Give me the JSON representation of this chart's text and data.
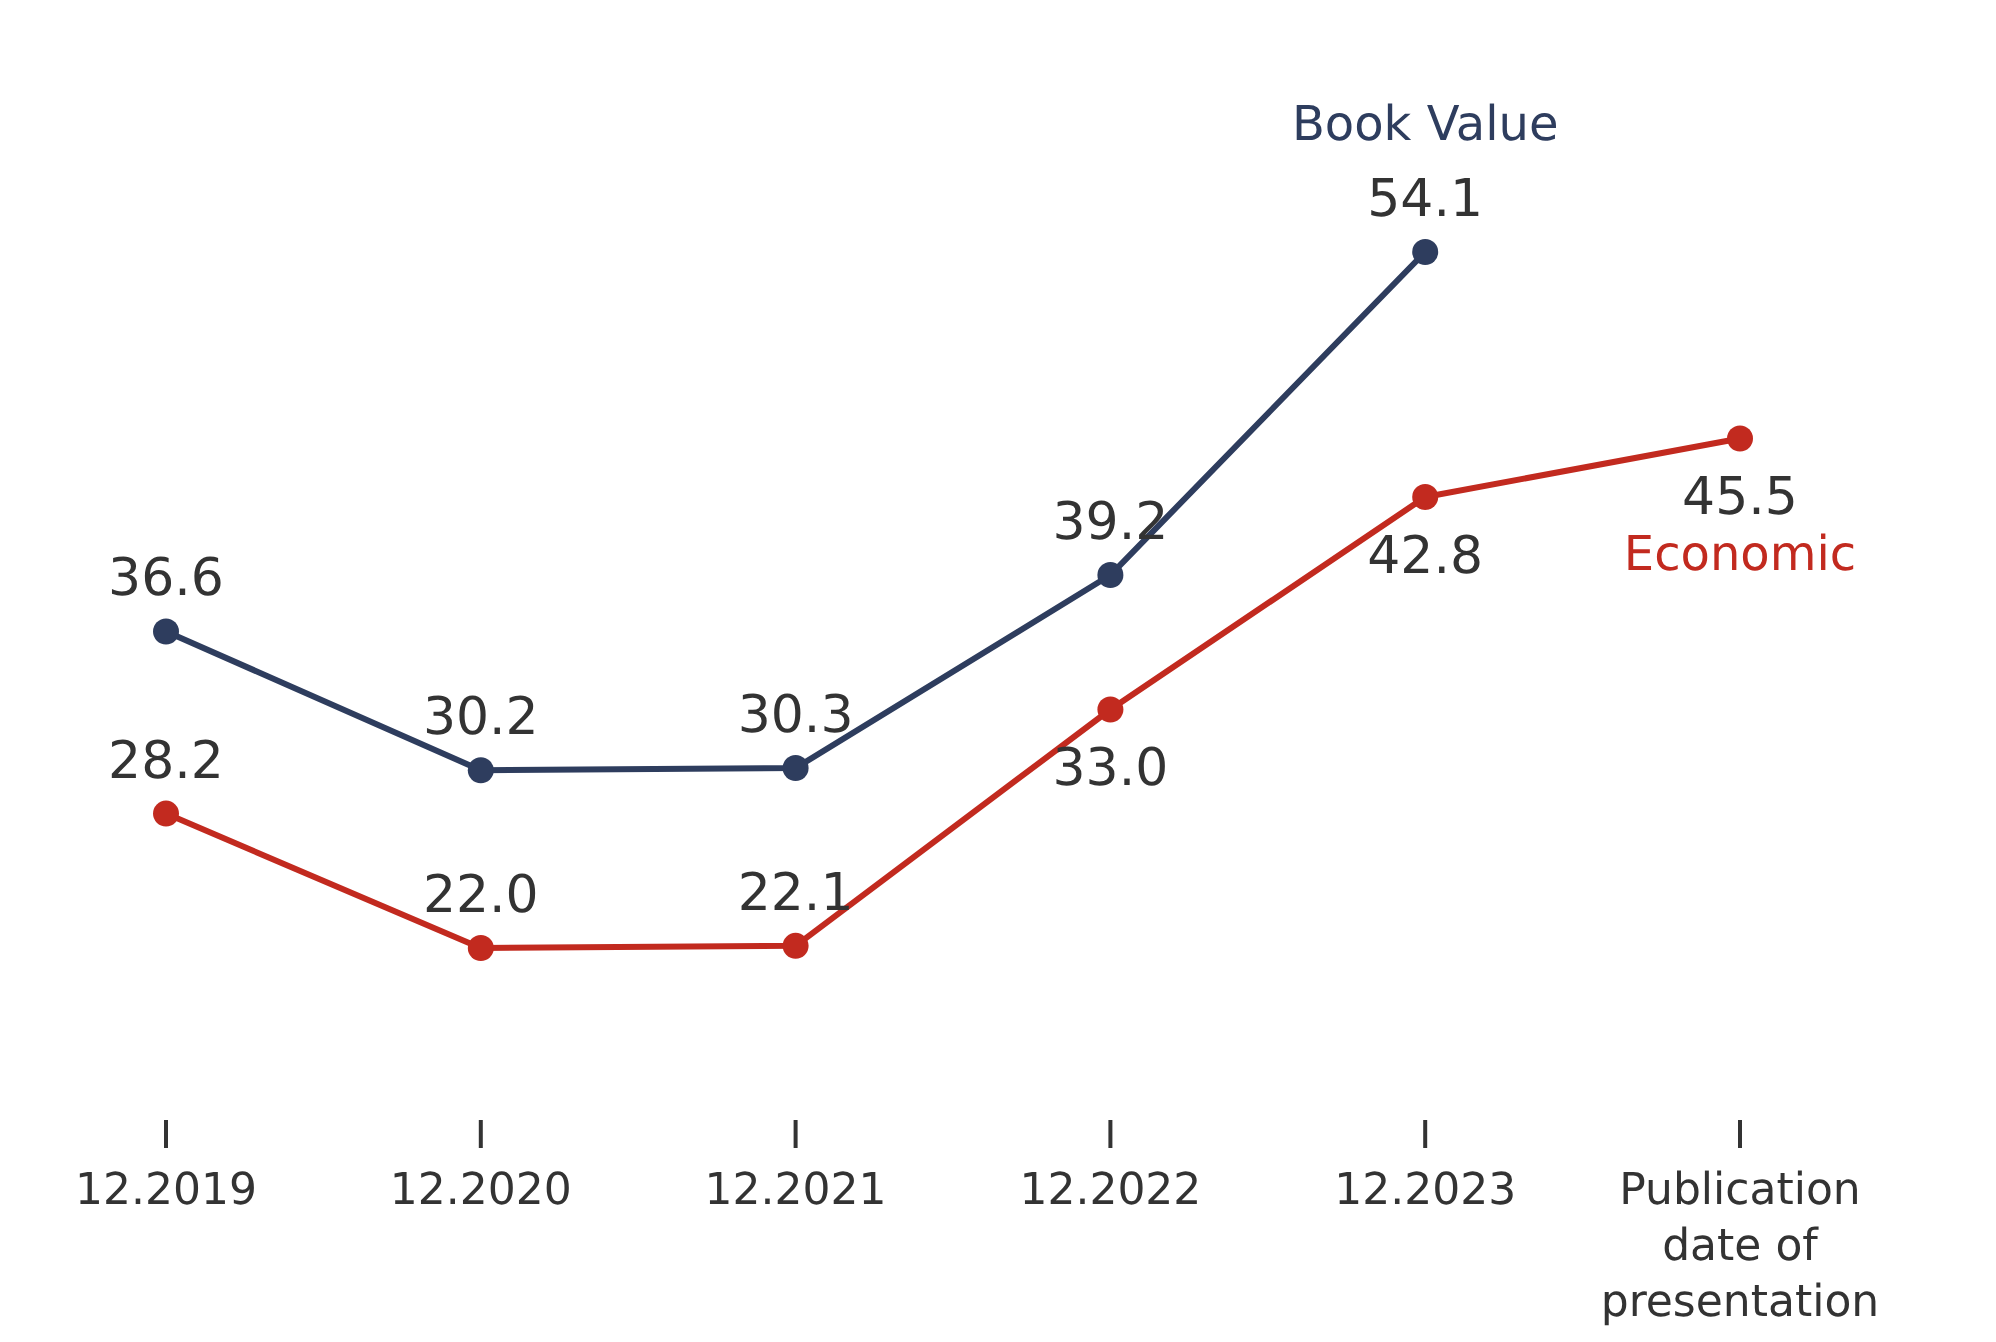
{
  "chart_data": {
    "type": "line",
    "categories": [
      "12.2019",
      "12.2020",
      "12.2021",
      "12.2022",
      "12.2023",
      "Publication date of presentation"
    ],
    "series": [
      {
        "name": "Book Value",
        "color": "#2e3d5e",
        "values": [
          36.6,
          30.2,
          30.3,
          39.2,
          54.1,
          null
        ],
        "value_labels": [
          "36.6",
          "30.2",
          "30.3",
          "39.2",
          "54.1",
          null
        ]
      },
      {
        "name": "Economic",
        "color": "#c22a1f",
        "values": [
          28.2,
          22.0,
          22.1,
          33.0,
          42.8,
          45.5
        ],
        "value_labels": [
          "28.2",
          "22.0",
          "22.1",
          "33.0",
          "42.8",
          "45.5"
        ]
      }
    ],
    "marker": "circle",
    "line_style": "solid",
    "tick_labels": "x"
  }
}
